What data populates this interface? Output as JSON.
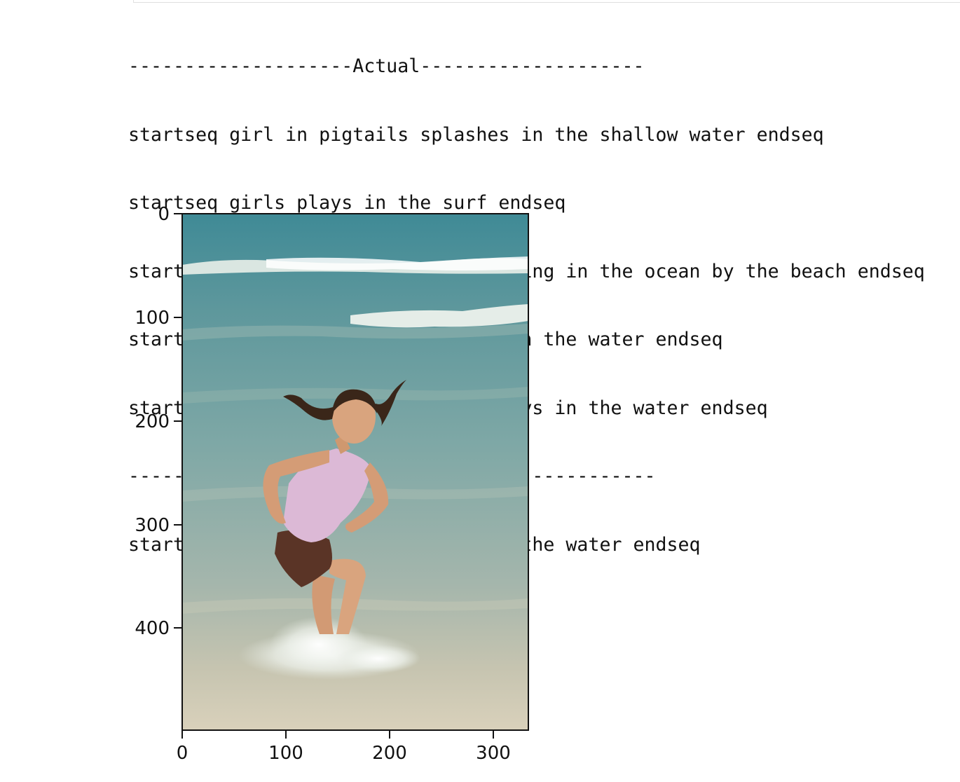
{
  "output": {
    "lines": [
      "--------------------Actual--------------------",
      "startseq girl in pigtails splashes in the shallow water endseq",
      "startseq girls plays in the surf endseq",
      "startseq girl with pigtails is playing in the ocean by the beach endseq",
      "startseq girl with pigtails plays in the water endseq",
      "startseq young girl in pigtails plays in the water endseq",
      "-------------------Predicted-------------------",
      "startseq girl in pigtails plays in the water endseq"
    ]
  },
  "figure": {
    "image_width": 333,
    "image_height": 500,
    "x_ticks": [
      {
        "value": 0,
        "label": "0"
      },
      {
        "value": 100,
        "label": "100"
      },
      {
        "value": 200,
        "label": "200"
      },
      {
        "value": 300,
        "label": "300"
      }
    ],
    "y_ticks": [
      {
        "value": 0,
        "label": "0"
      },
      {
        "value": 100,
        "label": "100"
      },
      {
        "value": 200,
        "label": "200"
      },
      {
        "value": 300,
        "label": "300"
      },
      {
        "value": 400,
        "label": "400"
      }
    ],
    "colors": {
      "sea_deep": "#3f8a96",
      "sea_mid": "#6a9fa3",
      "sea_shallow": "#a7b8b1",
      "sand": "#d7d0b9",
      "foam": "#f3f5ef",
      "skin": "#d9a07a",
      "top": "#d9b6d3",
      "shorts": "#5a3426",
      "hair": "#3a2619"
    }
  }
}
